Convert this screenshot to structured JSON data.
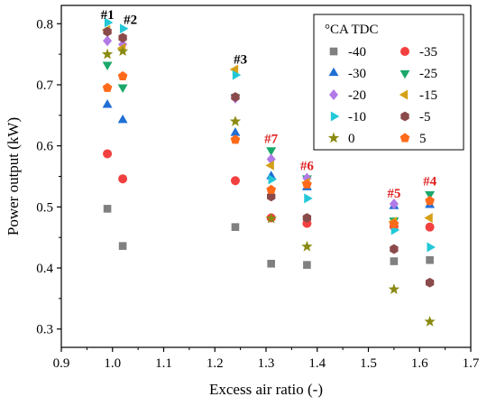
{
  "chart_data": {
    "type": "scatter",
    "xlabel": "Excess air ratio (-)",
    "ylabel": "Power output (kW)",
    "xlim": [
      0.9,
      1.7
    ],
    "ylim": [
      0.27,
      0.83
    ],
    "xticks": [
      "0.9",
      "1.0",
      "1.1",
      "1.2",
      "1.3",
      "1.4",
      "1.5",
      "1.6",
      "1.7"
    ],
    "yticks": [
      "0.3",
      "0.4",
      "0.5",
      "0.6",
      "0.7",
      "0.8"
    ],
    "grid": false,
    "legend": {
      "title": "°CA TDC",
      "placement": "top-right",
      "columns": 2
    },
    "series": [
      {
        "name": "-40",
        "marker": "square",
        "color": "#808080",
        "points": [
          [
            0.99,
            0.497
          ],
          [
            1.02,
            0.436
          ],
          [
            1.24,
            0.467
          ],
          [
            1.31,
            0.407
          ],
          [
            1.38,
            0.405
          ],
          [
            1.55,
            0.411
          ],
          [
            1.62,
            0.413
          ]
        ]
      },
      {
        "name": "-35",
        "marker": "circle",
        "color": "#f24040",
        "points": [
          [
            0.99,
            0.587
          ],
          [
            1.02,
            0.546
          ],
          [
            1.24,
            0.543
          ],
          [
            1.31,
            0.482
          ],
          [
            1.38,
            0.473
          ],
          [
            1.55,
            0.468
          ],
          [
            1.62,
            0.467
          ]
        ]
      },
      {
        "name": "-30",
        "marker": "triangle-up",
        "color": "#1f6fd6",
        "points": [
          [
            0.99,
            0.667
          ],
          [
            1.02,
            0.642
          ],
          [
            1.24,
            0.621
          ],
          [
            1.31,
            0.55
          ],
          [
            1.38,
            0.532
          ],
          [
            1.55,
            0.501
          ],
          [
            1.62,
            0.503
          ]
        ]
      },
      {
        "name": "-25",
        "marker": "triangle-down",
        "color": "#1aa86a",
        "points": [
          [
            0.99,
            0.733
          ],
          [
            1.02,
            0.696
          ],
          [
            1.24,
            0.68
          ],
          [
            1.31,
            0.593
          ],
          [
            1.38,
            0.547
          ],
          [
            1.55,
            0.478
          ],
          [
            1.62,
            0.521
          ]
        ]
      },
      {
        "name": "-20",
        "marker": "diamond",
        "color": "#b27ae6",
        "points": [
          [
            0.99,
            0.772
          ],
          [
            1.02,
            0.766
          ],
          [
            1.24,
            0.678
          ],
          [
            1.31,
            0.578
          ],
          [
            1.38,
            0.547
          ],
          [
            1.55,
            0.505
          ],
          [
            1.62,
            0.51
          ]
        ]
      },
      {
        "name": "-15",
        "marker": "triangle-left",
        "color": "#d4a017",
        "points": [
          [
            0.99,
            0.79
          ],
          [
            1.02,
            0.76
          ],
          [
            1.24,
            0.725
          ],
          [
            1.31,
            0.568
          ],
          [
            1.38,
            0.54
          ],
          [
            1.55,
            0.476
          ],
          [
            1.62,
            0.482
          ]
        ]
      },
      {
        "name": "-10",
        "marker": "triangle-right",
        "color": "#22c8d8",
        "points": [
          [
            0.99,
            0.802
          ],
          [
            1.02,
            0.792
          ],
          [
            1.24,
            0.716
          ],
          [
            1.31,
            0.545
          ],
          [
            1.38,
            0.514
          ],
          [
            1.55,
            0.462
          ],
          [
            1.62,
            0.434
          ]
        ]
      },
      {
        "name": "-5",
        "marker": "hexagon",
        "color": "#8b4a4a",
        "points": [
          [
            0.99,
            0.787
          ],
          [
            1.02,
            0.777
          ],
          [
            1.24,
            0.68
          ],
          [
            1.31,
            0.517
          ],
          [
            1.38,
            0.482
          ],
          [
            1.55,
            0.431
          ],
          [
            1.62,
            0.376
          ]
        ]
      },
      {
        "name": "0",
        "marker": "star",
        "color": "#8a8a12",
        "points": [
          [
            0.99,
            0.75
          ],
          [
            1.02,
            0.755
          ],
          [
            1.24,
            0.64
          ],
          [
            1.31,
            0.481
          ],
          [
            1.38,
            0.435
          ],
          [
            1.55,
            0.365
          ],
          [
            1.62,
            0.312
          ]
        ]
      },
      {
        "name": "5",
        "marker": "pentagon",
        "color": "#ff6a1a",
        "points": [
          [
            0.99,
            0.695
          ],
          [
            1.02,
            0.714
          ],
          [
            1.24,
            0.61
          ],
          [
            1.31,
            0.528
          ],
          [
            1.38,
            0.537
          ],
          [
            1.55,
            0.472
          ],
          [
            1.62,
            0.51
          ]
        ]
      }
    ],
    "annotations": [
      {
        "text": "#1",
        "x": 0.99,
        "y": 0.808,
        "color": "#000000"
      },
      {
        "text": "#2",
        "x": 1.035,
        "y": 0.8,
        "color": "#000000"
      },
      {
        "text": "#3",
        "x": 1.25,
        "y": 0.735,
        "color": "#000000"
      },
      {
        "text": "#7",
        "x": 1.31,
        "y": 0.605,
        "color": "#e02020"
      },
      {
        "text": "#6",
        "x": 1.38,
        "y": 0.56,
        "color": "#e02020"
      },
      {
        "text": "#5",
        "x": 1.55,
        "y": 0.515,
        "color": "#e02020"
      },
      {
        "text": "#4",
        "x": 1.62,
        "y": 0.535,
        "color": "#e02020"
      }
    ]
  }
}
